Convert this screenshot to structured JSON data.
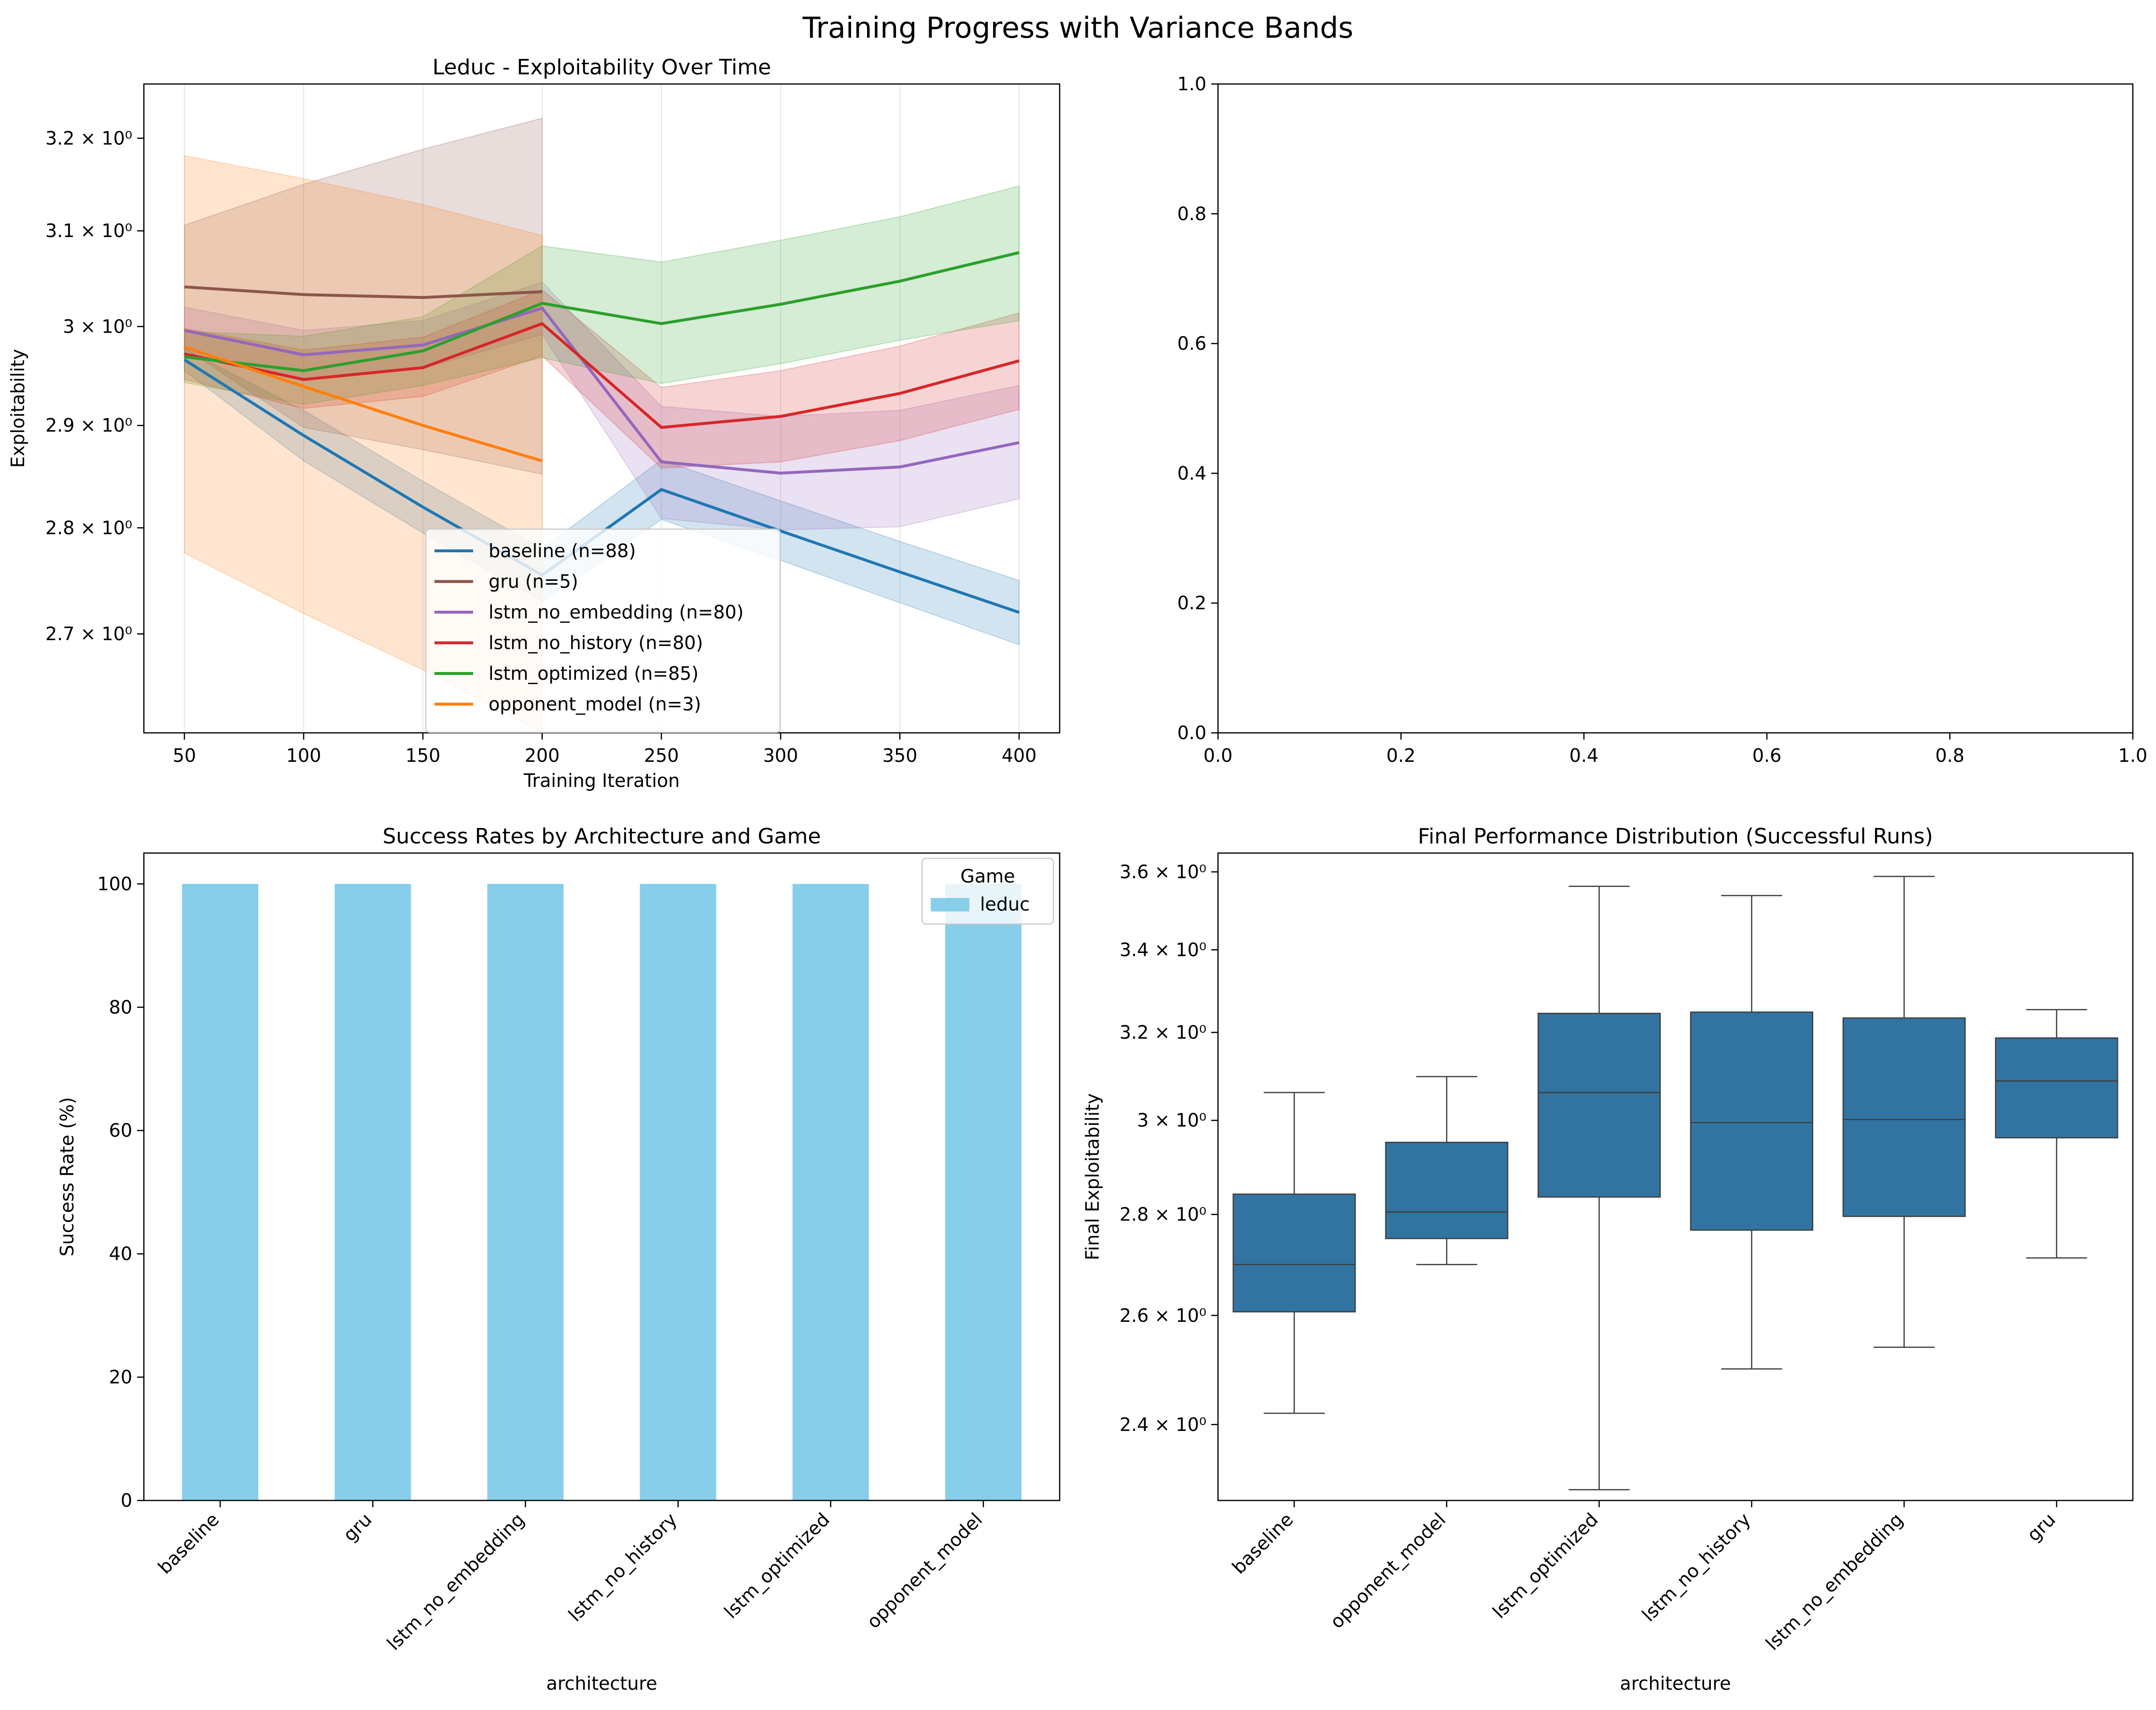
{
  "figure_title": "Training Progress with Variance Bands",
  "chart_data": [
    {
      "id": "line",
      "type": "line",
      "title": "Leduc - Exploitability Over Time",
      "xlabel": "Training Iteration",
      "ylabel": "Exploitability",
      "y_scale": "log",
      "grid": "x",
      "xlim": [
        33,
        417
      ],
      "ylim": [
        2.61,
        3.26
      ],
      "xticks": [
        "50",
        "100",
        "150",
        "200",
        "250",
        "300",
        "350",
        "400"
      ],
      "xtick_values": [
        50,
        100,
        150,
        200,
        250,
        300,
        350,
        400
      ],
      "yticks": [
        "2.7 × 10⁰",
        "2.8 × 10⁰",
        "2.9 × 10⁰",
        "3 × 10⁰",
        "3.1 × 10⁰",
        "3.2 × 10⁰"
      ],
      "ytick_values": [
        2.7,
        2.8,
        2.9,
        3.0,
        3.1,
        3.2
      ],
      "legend_position": "lower center",
      "series": [
        {
          "name": "baseline (n=88)",
          "color": "#1f77b4",
          "x": [
            50,
            100,
            150,
            200,
            250,
            300,
            350,
            400
          ],
          "y": [
            2.966,
            2.89,
            2.82,
            2.755,
            2.837,
            2.797,
            2.758,
            2.72
          ],
          "lower": [
            2.955,
            2.865,
            2.795,
            2.73,
            2.808,
            2.769,
            2.729,
            2.69
          ],
          "upper": [
            2.977,
            2.915,
            2.845,
            2.78,
            2.866,
            2.826,
            2.787,
            2.75
          ]
        },
        {
          "name": "gru (n=5)",
          "color": "#8c564b",
          "x": [
            50,
            100,
            150,
            200
          ],
          "y": [
            3.041,
            3.033,
            3.03,
            3.036
          ],
          "lower": [
            2.978,
            2.898,
            2.876,
            2.852
          ],
          "upper": [
            3.106,
            3.15,
            3.188,
            3.222
          ]
        },
        {
          "name": "lstm_no_embedding (n=80)",
          "color": "#9467bd",
          "x": [
            50,
            100,
            150,
            200,
            250,
            300,
            350,
            400
          ],
          "y": [
            2.996,
            2.971,
            2.981,
            3.019,
            2.864,
            2.853,
            2.859,
            2.883
          ],
          "lower": [
            2.972,
            2.946,
            2.957,
            2.992,
            2.809,
            2.798,
            2.801,
            2.828
          ],
          "upper": [
            3.02,
            2.996,
            3.006,
            3.046,
            2.919,
            2.909,
            2.915,
            2.94
          ]
        },
        {
          "name": "lstm_no_history (n=80)",
          "color": "#d62728",
          "x": [
            50,
            100,
            150,
            200,
            250,
            300,
            350,
            400
          ],
          "y": [
            2.972,
            2.946,
            2.958,
            3.003,
            2.898,
            2.909,
            2.932,
            2.965
          ],
          "lower": [
            2.946,
            2.917,
            2.929,
            2.97,
            2.858,
            2.864,
            2.885,
            2.916
          ],
          "upper": [
            2.998,
            2.976,
            2.989,
            3.038,
            2.938,
            2.955,
            2.98,
            3.014
          ]
        },
        {
          "name": "lstm_optimized (n=85)",
          "color": "#2ca02c",
          "x": [
            50,
            100,
            150,
            200,
            250,
            300,
            350,
            400
          ],
          "y": [
            2.969,
            2.955,
            2.975,
            3.024,
            3.003,
            3.023,
            3.047,
            3.077
          ],
          "lower": [
            2.943,
            2.921,
            2.94,
            2.968,
            2.942,
            2.962,
            2.986,
            3.006
          ],
          "upper": [
            2.995,
            2.99,
            3.01,
            3.084,
            3.067,
            3.09,
            3.115,
            3.148
          ]
        },
        {
          "name": "opponent_model (n=3)",
          "color": "#ff7f0e",
          "x": [
            50,
            100,
            150,
            200
          ],
          "y": [
            2.979,
            2.939,
            2.9,
            2.865
          ],
          "lower": [
            2.776,
            2.719,
            2.667,
            2.61
          ],
          "upper": [
            3.181,
            3.156,
            3.128,
            3.095
          ]
        }
      ]
    },
    {
      "id": "empty",
      "type": "line",
      "title": "",
      "xlim": [
        0,
        1
      ],
      "ylim": [
        0,
        1
      ],
      "xticks": [
        "0.0",
        "0.2",
        "0.4",
        "0.6",
        "0.8",
        "1.0"
      ],
      "yticks": [
        "0.0",
        "0.2",
        "0.4",
        "0.6",
        "0.8",
        "1.0"
      ],
      "series": []
    },
    {
      "id": "bar",
      "type": "bar",
      "title": "Success Rates by Architecture and Game",
      "xlabel": "architecture",
      "ylabel": "Success Rate (%)",
      "ylim": [
        0,
        105
      ],
      "yticks": [
        "0",
        "20",
        "40",
        "60",
        "80",
        "100"
      ],
      "ytick_values": [
        0,
        20,
        40,
        60,
        80,
        100
      ],
      "categories": [
        "baseline",
        "gru",
        "lstm_no_embedding",
        "lstm_no_history",
        "lstm_optimized",
        "opponent_model"
      ],
      "legend_title": "Game",
      "legend_position": "upper right",
      "series": [
        {
          "name": "leduc",
          "color": "#87ceeb",
          "values": [
            100,
            100,
            100,
            100,
            100,
            100
          ]
        }
      ]
    },
    {
      "id": "box",
      "type": "box",
      "title": "Final Performance Distribution (Successful Runs)",
      "xlabel": "architecture",
      "ylabel": "Final Exploitability",
      "y_scale": "log",
      "ylim": [
        2.27,
        3.65
      ],
      "yticks": [
        "2.4 × 10⁰",
        "2.6 × 10⁰",
        "2.8 × 10⁰",
        "3 × 10⁰",
        "3.2 × 10⁰",
        "3.4 × 10⁰",
        "3.6 × 10⁰"
      ],
      "ytick_values": [
        2.4,
        2.6,
        2.8,
        3.0,
        3.2,
        3.4,
        3.6
      ],
      "box_color": "#3274a1",
      "categories": [
        "baseline",
        "opponent_model",
        "lstm_optimized",
        "lstm_no_history",
        "lstm_no_embedding",
        "gru"
      ],
      "stats": [
        {
          "whislo": 2.42,
          "q1": 2.607,
          "med": 2.699,
          "q3": 2.842,
          "whishi": 3.062
        },
        {
          "whislo": 2.699,
          "q1": 2.751,
          "med": 2.805,
          "q3": 2.952,
          "whishi": 3.098
        },
        {
          "whislo": 2.288,
          "q1": 2.836,
          "med": 3.062,
          "q3": 3.245,
          "whishi": 3.562
        },
        {
          "whislo": 2.5,
          "q1": 2.768,
          "med": 2.995,
          "q3": 3.248,
          "whishi": 3.538
        },
        {
          "whislo": 2.54,
          "q1": 2.796,
          "med": 3.002,
          "q3": 3.234,
          "whishi": 3.588
        },
        {
          "whislo": 2.712,
          "q1": 2.962,
          "med": 3.088,
          "q3": 3.187,
          "whishi": 3.254
        }
      ]
    }
  ]
}
